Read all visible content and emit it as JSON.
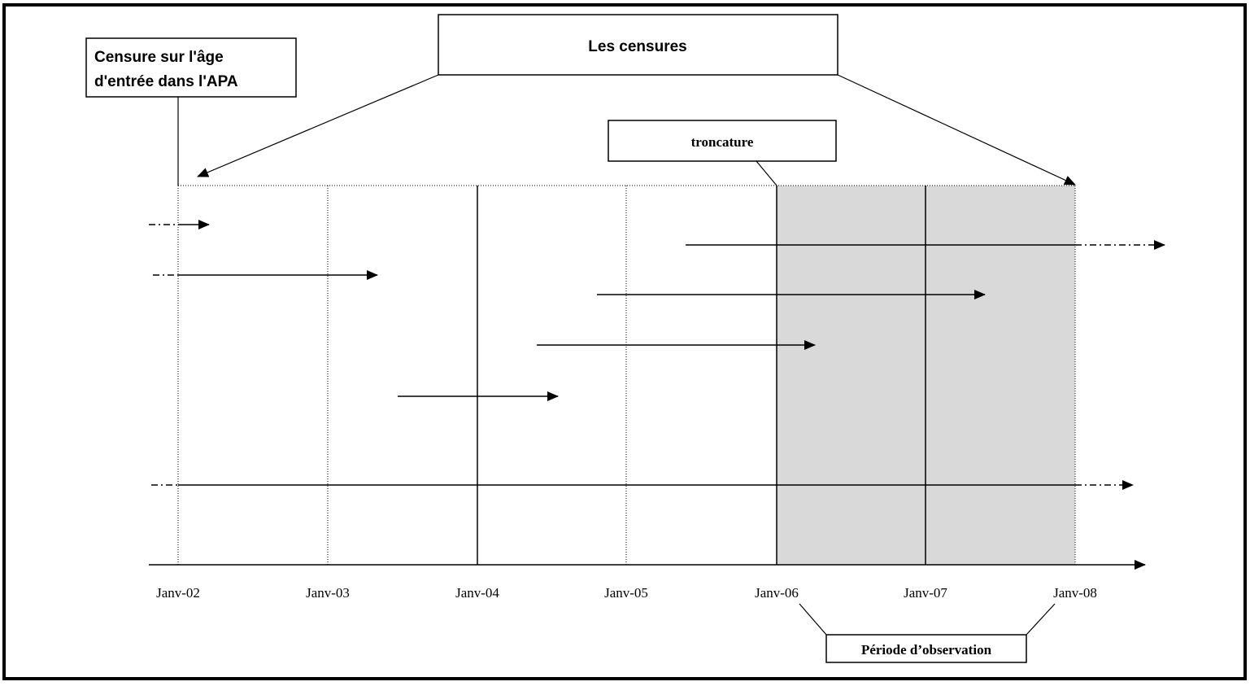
{
  "diagram": {
    "boxes": {
      "censures": "Les censures",
      "age_censure_line1": "Censure sur l'âge",
      "age_censure_line2": "d'entrée dans l'APA",
      "troncature": "troncature",
      "periode": "Période d’observation"
    },
    "axis_ticks": [
      "Janv-02",
      "Janv-03",
      "Janv-04",
      "Janv-05",
      "Janv-06",
      "Janv-07",
      "Janv-08"
    ],
    "observation_period": {
      "start": "Janv-06",
      "end": "Janv-08",
      "fill": "#d9d9d9"
    },
    "colors": {
      "line": "#000000",
      "background": "#ffffff",
      "border": "#000000"
    }
  }
}
